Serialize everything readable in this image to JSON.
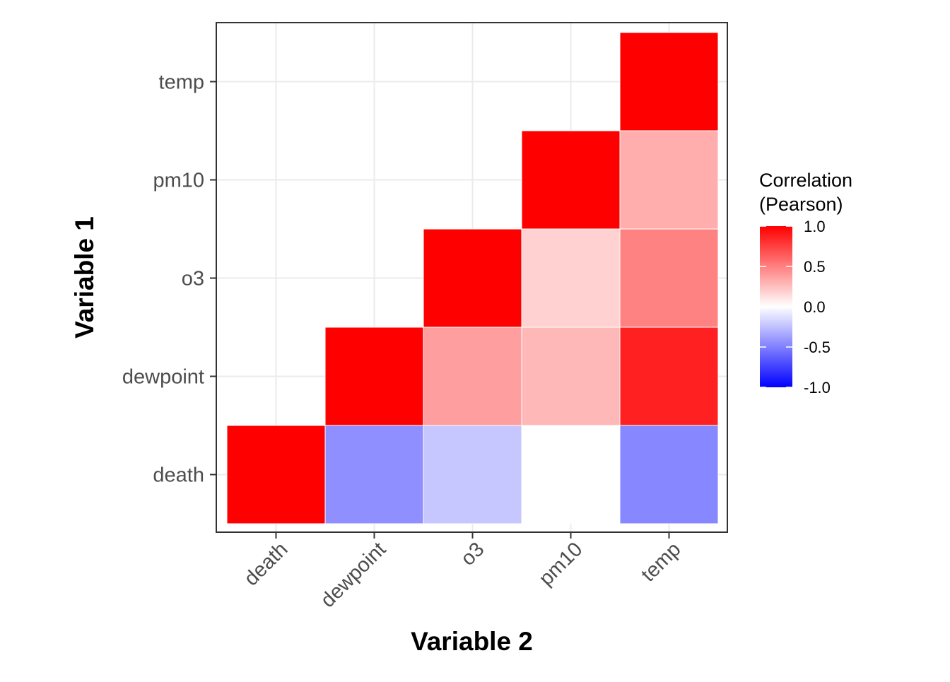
{
  "chart_data": {
    "type": "heatmap",
    "title": "",
    "xlabel": "Variable 2",
    "ylabel": "Variable 1",
    "x_categories": [
      "death",
      "dewpoint",
      "o3",
      "pm10",
      "temp"
    ],
    "y_categories": [
      "death",
      "dewpoint",
      "o3",
      "pm10",
      "temp"
    ],
    "cells": [
      {
        "x": "death",
        "y": "death",
        "value": 1.0
      },
      {
        "x": "dewpoint",
        "y": "death",
        "value": -0.44
      },
      {
        "x": "o3",
        "y": "death",
        "value": -0.22
      },
      {
        "x": "pm10",
        "y": "death",
        "value": 0.0
      },
      {
        "x": "temp",
        "y": "death",
        "value": -0.47
      },
      {
        "x": "dewpoint",
        "y": "dewpoint",
        "value": 1.0
      },
      {
        "x": "o3",
        "y": "dewpoint",
        "value": 0.38
      },
      {
        "x": "pm10",
        "y": "dewpoint",
        "value": 0.28
      },
      {
        "x": "temp",
        "y": "dewpoint",
        "value": 0.87
      },
      {
        "x": "o3",
        "y": "o3",
        "value": 1.0
      },
      {
        "x": "pm10",
        "y": "o3",
        "value": 0.18
      },
      {
        "x": "temp",
        "y": "o3",
        "value": 0.49
      },
      {
        "x": "pm10",
        "y": "pm10",
        "value": 1.0
      },
      {
        "x": "temp",
        "y": "pm10",
        "value": 0.32
      },
      {
        "x": "temp",
        "y": "temp",
        "value": 1.0
      }
    ],
    "legend": {
      "title_lines": [
        "Correlation",
        "(Pearson)"
      ],
      "min": -1.0,
      "max": 1.0,
      "ticks": [
        1.0,
        0.5,
        0.0,
        -0.5,
        -1.0
      ],
      "tick_labels": [
        "1.0",
        "0.5",
        "0.0",
        "-0.5",
        "-1.0"
      ],
      "position": "right"
    },
    "colors": {
      "low": "#0000ff",
      "mid": "#ffffff",
      "high": "#ff0000",
      "grid": "#ebebeb",
      "panel_border": "#333333",
      "tick_color": "#333333",
      "cell_border": "#ffffff"
    },
    "grid": true
  }
}
